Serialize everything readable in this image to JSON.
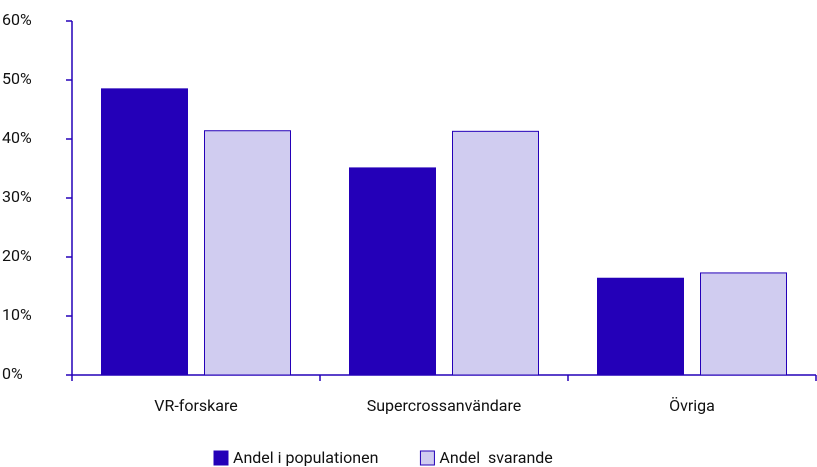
{
  "chart_data": {
    "type": "bar",
    "categories": [
      "VR-forskare",
      "Supercrossanvändare",
      "Övriga"
    ],
    "series": [
      {
        "name": "Andel i populationen",
        "color": "#2400b8",
        "values": [
          48.5,
          35.1,
          16.4
        ]
      },
      {
        "name": "Andel  svarande",
        "color": "#d0ccf0",
        "values": [
          41.4,
          41.3,
          17.3
        ]
      }
    ],
    "ylim": [
      0,
      60
    ],
    "yticks": [
      {
        "value": 0,
        "label": "0%"
      },
      {
        "value": 10,
        "label": "10%"
      },
      {
        "value": 20,
        "label": "20%"
      },
      {
        "value": 30,
        "label": "30%"
      },
      {
        "value": 40,
        "label": "40%"
      },
      {
        "value": 50,
        "label": "50%"
      },
      {
        "value": 60,
        "label": "60%"
      }
    ],
    "grid": false,
    "legend": "bottom"
  }
}
